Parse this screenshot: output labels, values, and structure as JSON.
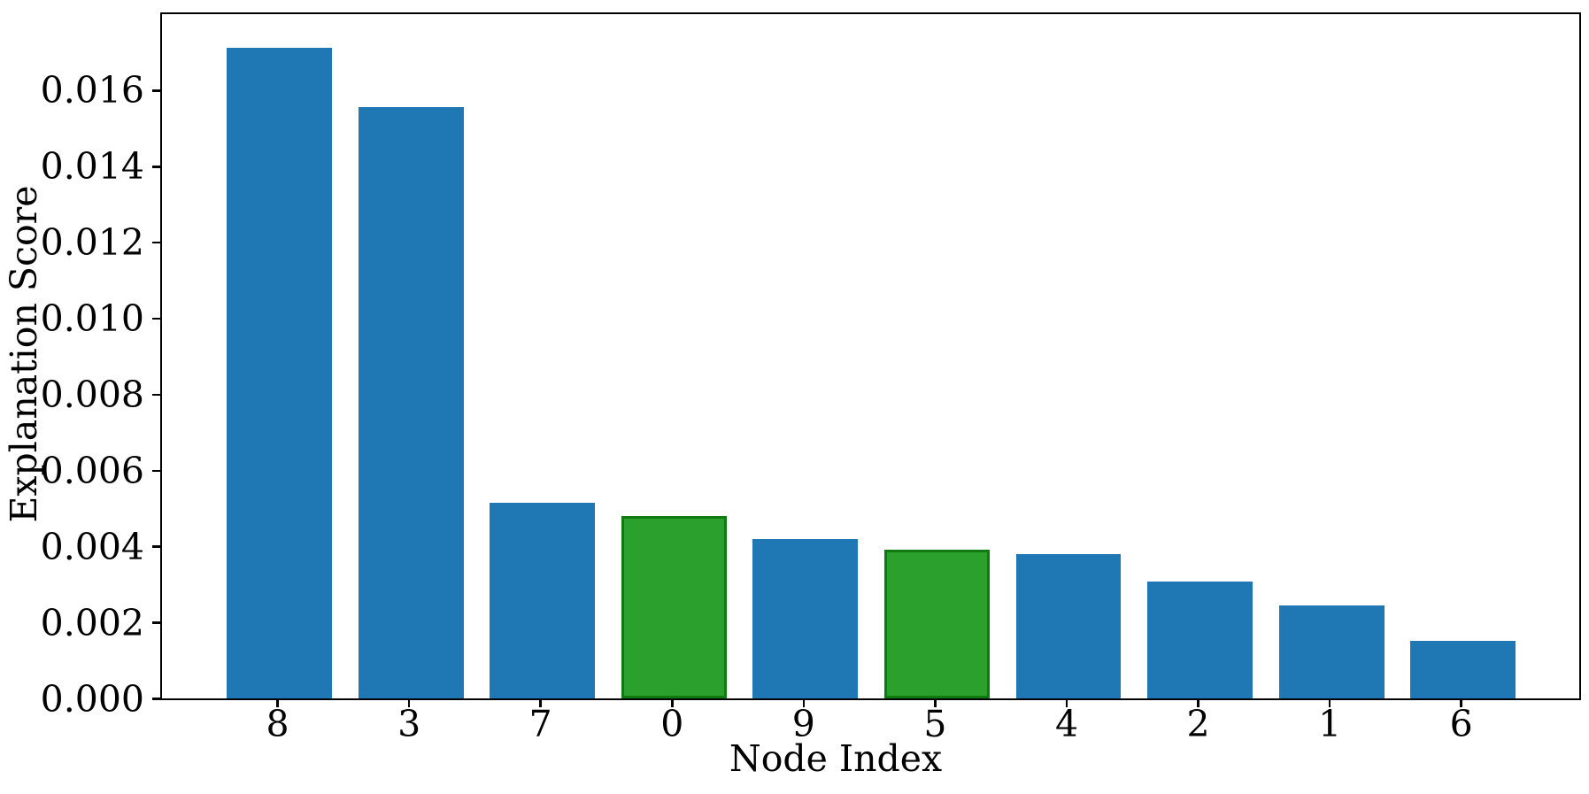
{
  "figure": {
    "background_color": "#ffffff",
    "text_color": "#000000",
    "spine_color": "#000000"
  },
  "chart_data": {
    "type": "bar",
    "title": "",
    "xlabel": "Node Index",
    "ylabel": "Explanation Score",
    "categories": [
      "8",
      "3",
      "7",
      "0",
      "9",
      "5",
      "4",
      "2",
      "1",
      "6"
    ],
    "values": [
      0.01712,
      0.01555,
      0.00515,
      0.0048,
      0.0042,
      0.00392,
      0.0038,
      0.00308,
      0.00244,
      0.00152
    ],
    "bar_colors": [
      "#1f77b4",
      "#1f77b4",
      "#1f77b4",
      "#2ca02c",
      "#1f77b4",
      "#2ca02c",
      "#1f77b4",
      "#1f77b4",
      "#1f77b4",
      "#1f77b4"
    ],
    "bar_edge_colors": [
      "none",
      "none",
      "none",
      "#0f7a0f",
      "none",
      "#0f7a0f",
      "none",
      "none",
      "none",
      "none"
    ],
    "highlighted_categories": [
      "0",
      "5"
    ],
    "colors": {
      "default_bar": "#1f77b4",
      "highlight_bar": "#2ca02c",
      "highlight_edge": "#0f7a0f"
    },
    "yticks": [
      0.0,
      0.002,
      0.004,
      0.006,
      0.008,
      0.01,
      0.012,
      0.014,
      0.016
    ],
    "ytick_labels": [
      "0.000",
      "0.002",
      "0.004",
      "0.006",
      "0.008",
      "0.010",
      "0.012",
      "0.014",
      "0.016"
    ],
    "ylim": [
      0,
      0.018
    ],
    "grid": false,
    "legend": "none",
    "bar_width_ratio": 0.8
  }
}
